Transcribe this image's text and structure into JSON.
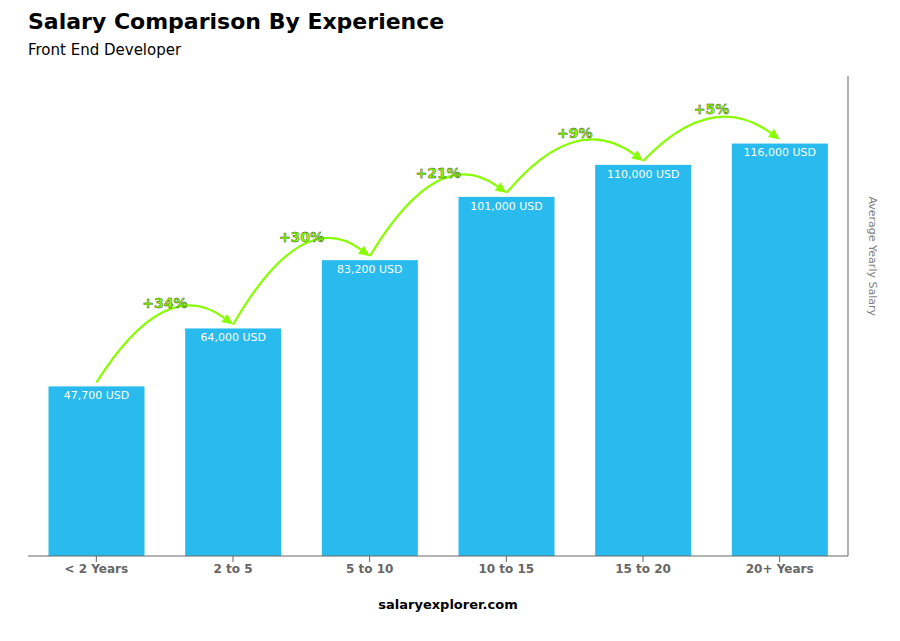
{
  "chart_data": {
    "type": "bar",
    "title": "Salary Comparison By Experience",
    "subtitle": "Front End Developer",
    "ylabel": "Average Yearly Salary",
    "categories": [
      "< 2 Years",
      "2 to 5",
      "5 to 10",
      "10 to 15",
      "15 to 20",
      "20+ Years"
    ],
    "values": [
      47700,
      64000,
      83200,
      101000,
      110000,
      116000
    ],
    "value_labels": [
      "47,700 USD",
      "64,000 USD",
      "83,200 USD",
      "101,000 USD",
      "110,000 USD",
      "116,000 USD"
    ],
    "data_labels": true,
    "annotations": [
      {
        "text": "+34%",
        "color": "#88ff00"
      },
      {
        "text": "+30%",
        "color": "#88ff00"
      },
      {
        "text": "+21%",
        "color": "#88ff00"
      },
      {
        "text": "+9%",
        "color": "#88ff00"
      },
      {
        "text": "+5%",
        "color": "#88ff00"
      }
    ],
    "footer": "salaryexplorer.com",
    "color": "#29bbee",
    "ylim": [
      0,
      135000
    ],
    "tick_labels": "x",
    "grid": false
  }
}
